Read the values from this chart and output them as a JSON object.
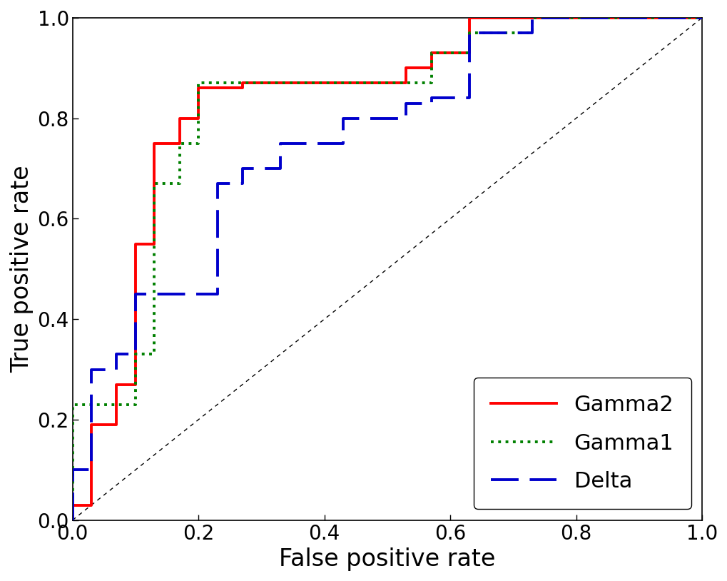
{
  "gamma2_fpr": [
    0.0,
    0.0,
    0.03,
    0.03,
    0.07,
    0.07,
    0.1,
    0.1,
    0.13,
    0.13,
    0.17,
    0.17,
    0.2,
    0.2,
    0.27,
    0.27,
    0.53,
    0.53,
    0.57,
    0.57,
    0.63,
    0.63,
    0.73,
    0.73,
    0.77,
    0.77,
    1.0
  ],
  "gamma2_tpr": [
    0.0,
    0.03,
    0.03,
    0.19,
    0.19,
    0.27,
    0.27,
    0.55,
    0.55,
    0.75,
    0.75,
    0.8,
    0.8,
    0.86,
    0.86,
    0.87,
    0.87,
    0.9,
    0.9,
    0.93,
    0.93,
    1.0,
    1.0,
    1.0,
    1.0,
    1.0,
    1.0
  ],
  "gamma1_fpr": [
    0.0,
    0.0,
    0.1,
    0.1,
    0.13,
    0.13,
    0.17,
    0.17,
    0.2,
    0.2,
    0.23,
    0.23,
    0.57,
    0.57,
    0.63,
    0.63,
    0.73,
    0.73,
    1.0
  ],
  "gamma1_tpr": [
    0.0,
    0.23,
    0.23,
    0.33,
    0.33,
    0.67,
    0.67,
    0.75,
    0.75,
    0.87,
    0.87,
    0.87,
    0.87,
    0.93,
    0.93,
    0.97,
    0.97,
    1.0,
    1.0
  ],
  "delta_fpr": [
    0.0,
    0.0,
    0.03,
    0.03,
    0.07,
    0.07,
    0.1,
    0.1,
    0.17,
    0.17,
    0.23,
    0.23,
    0.27,
    0.27,
    0.33,
    0.33,
    0.43,
    0.43,
    0.53,
    0.53,
    0.57,
    0.57,
    0.63,
    0.63,
    0.73,
    0.73,
    1.0
  ],
  "delta_tpr": [
    0.0,
    0.1,
    0.1,
    0.3,
    0.3,
    0.33,
    0.33,
    0.45,
    0.45,
    0.45,
    0.45,
    0.67,
    0.67,
    0.7,
    0.7,
    0.75,
    0.75,
    0.8,
    0.8,
    0.83,
    0.83,
    0.84,
    0.84,
    0.97,
    0.97,
    1.0,
    1.0
  ],
  "gamma2_color": "#FF0000",
  "gamma1_color": "#008000",
  "delta_color": "#0000CC",
  "diagonal_color": "#000000",
  "xlabel": "False positive rate",
  "ylabel": "True positive rate",
  "xlim": [
    0,
    1
  ],
  "ylim": [
    0,
    1
  ],
  "xlabel_fontsize": 24,
  "ylabel_fontsize": 24,
  "tick_fontsize": 20,
  "legend_fontsize": 22,
  "gamma2_linewidth": 2.8,
  "gamma1_linewidth": 2.8,
  "delta_linewidth": 2.8,
  "diagonal_linewidth": 1.0
}
